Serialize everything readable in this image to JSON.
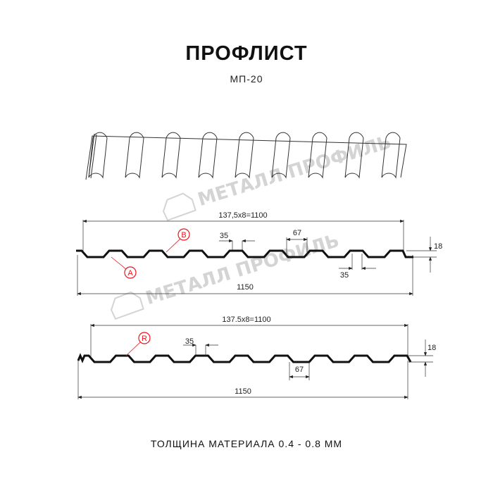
{
  "title": "ПРОФЛИСТ",
  "subtitle": "МП-20",
  "footer": "ТОЛЩИНА МАТЕРИАЛА 0.4 - 0.8 ММ",
  "watermark": "МЕТАЛЛ ПРОФИЛЬ",
  "profile_a": {
    "pitch_dim": "137,5x8=1100",
    "width_dim": "1150",
    "rib_top_dim": "35",
    "rib_bottom_dim": "35",
    "valley_dim": "67",
    "height_dim": "18",
    "marker_a": "A",
    "marker_b": "B"
  },
  "profile_r": {
    "pitch_dim": "137.5x8=1100",
    "width_dim": "1150",
    "rib_top_dim": "35",
    "valley_dim": "67",
    "height_dim": "18",
    "marker_r": "R"
  },
  "colors": {
    "line": "#111111",
    "marker": "#e8141b",
    "watermark": "#d4d4d4"
  }
}
